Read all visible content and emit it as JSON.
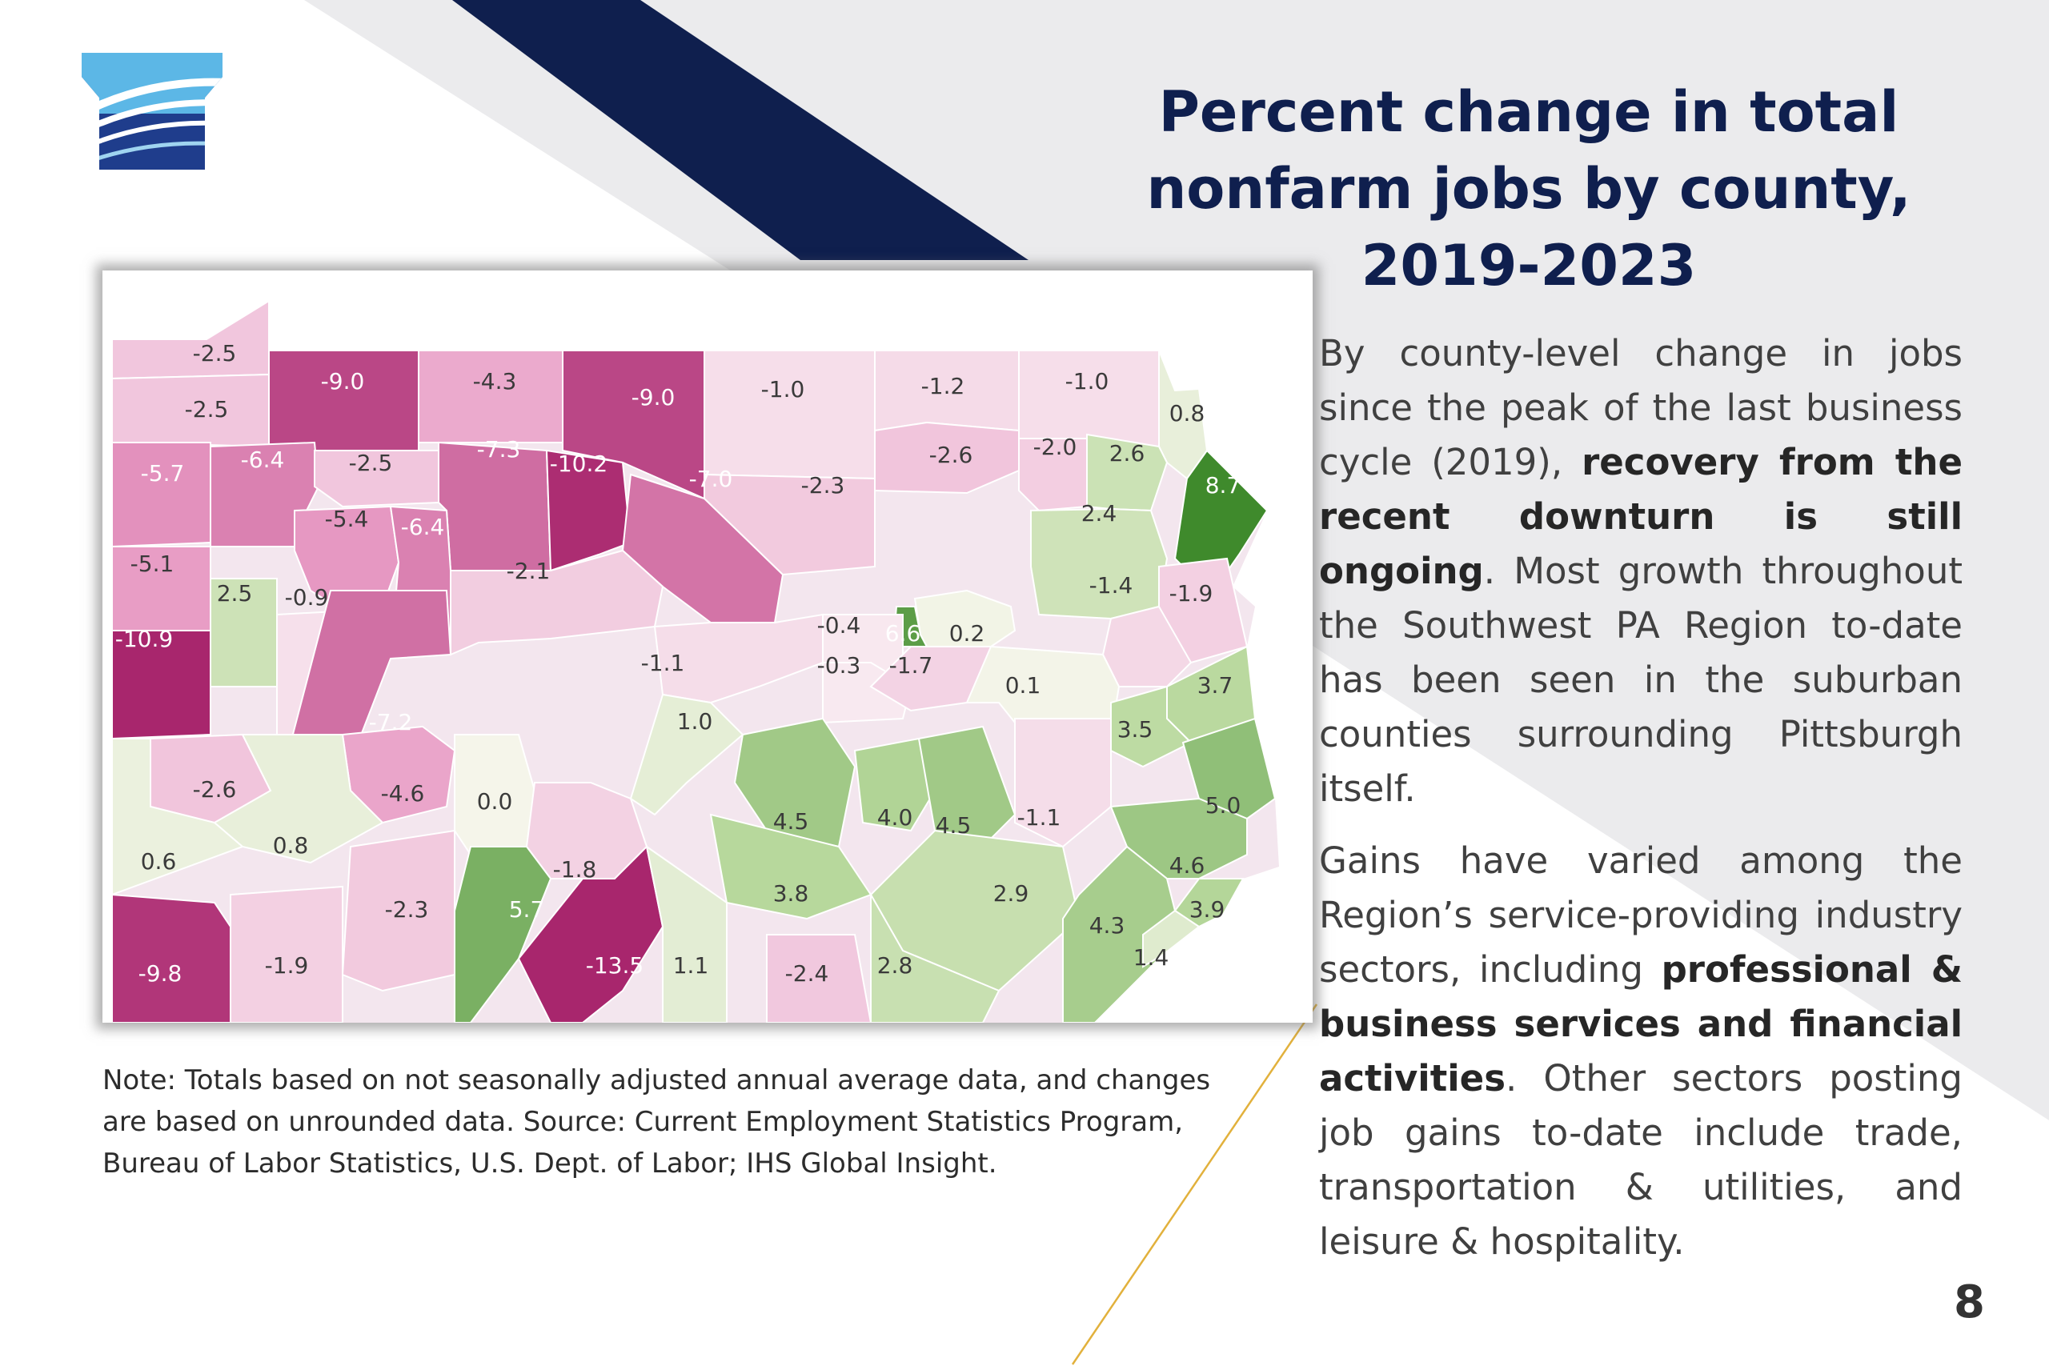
{
  "slide": {
    "title_lines": [
      "Percent change in total",
      "nonfarm jobs by county,",
      "2019-2023"
    ],
    "page_number": "8",
    "colors": {
      "title": "#0f1f4e",
      "navy_stripe": "#0f1f4e",
      "accent_line": "#e2b13c",
      "background_band": "#ebebed"
    },
    "logo": {
      "icon": "pa-keystone-logo-icon"
    }
  },
  "map": {
    "title": "",
    "subject": "Pennsylvania counties",
    "color_scale": "diverging pink (loss) to green (gain)",
    "counties": [
      {
        "value": "-2.5"
      },
      {
        "value": "-2.5"
      },
      {
        "value": "-9.0"
      },
      {
        "value": "-4.3"
      },
      {
        "value": "-9.0"
      },
      {
        "value": "-1.0"
      },
      {
        "value": "-1.2"
      },
      {
        "value": "-1.0"
      },
      {
        "value": "0.8"
      },
      {
        "value": "-5.7"
      },
      {
        "value": "-6.4"
      },
      {
        "value": "-2.5"
      },
      {
        "value": "-7.3"
      },
      {
        "value": "-10.2"
      },
      {
        "value": "-7.0"
      },
      {
        "value": "-2.3"
      },
      {
        "value": "-2.6"
      },
      {
        "value": "-2.0"
      },
      {
        "value": "2.6"
      },
      {
        "value": "8.7"
      },
      {
        "value": "-5.4"
      },
      {
        "value": "-6.4"
      },
      {
        "value": "2.4"
      },
      {
        "value": "-5.1"
      },
      {
        "value": "2.5"
      },
      {
        "value": "-2.1"
      },
      {
        "value": "-1.1"
      },
      {
        "value": "6.6"
      },
      {
        "value": "0.2"
      },
      {
        "value": "-0.4"
      },
      {
        "value": "-1.9"
      },
      {
        "value": "-0.9"
      },
      {
        "value": "-1.4"
      },
      {
        "value": "-10.9"
      },
      {
        "value": "-0.3"
      },
      {
        "value": "-1.7"
      },
      {
        "value": "0.1"
      },
      {
        "value": "3.7"
      },
      {
        "value": "-7.2"
      },
      {
        "value": "1.0"
      },
      {
        "value": "3.5"
      },
      {
        "value": "-2.6"
      },
      {
        "value": "-4.6"
      },
      {
        "value": "0.0"
      },
      {
        "value": "4.5"
      },
      {
        "value": "4.0"
      },
      {
        "value": "4.5"
      },
      {
        "value": "-1.1"
      },
      {
        "value": "5.0"
      },
      {
        "value": "0.8"
      },
      {
        "value": "-1.8"
      },
      {
        "value": "0.6"
      },
      {
        "value": "4.6"
      },
      {
        "value": "3.8"
      },
      {
        "value": "5.7"
      },
      {
        "value": "-2.3"
      },
      {
        "value": "2.9"
      },
      {
        "value": "3.9"
      },
      {
        "value": "4.3"
      },
      {
        "value": "-9.8"
      },
      {
        "value": "-1.9"
      },
      {
        "value": "-13.5"
      },
      {
        "value": "1.1"
      },
      {
        "value": "-2.4"
      },
      {
        "value": "2.8"
      },
      {
        "value": "1.4"
      }
    ]
  },
  "note": {
    "lines": [
      "Note: Totals based on not seasonally adjusted annual average data, and changes",
      "are based on unrounded data. Source: Current Employment Statistics  Program,",
      "Bureau of Labor Statistics, U.S. Dept. of Labor; IHS Global Insight."
    ]
  },
  "body": {
    "p1_a": "By county-level change in jobs since the peak of the last business cycle (2019), ",
    "p1_b": "recovery from the recent downturn is still ongoing",
    "p1_c": ". Most growth throughout the Southwest PA Region to-date has been seen in the suburban counties surrounding Pittsburgh itself.",
    "p2_a": "Gains have varied among the Region’s service-providing industry sectors, including ",
    "p2_b": "professional & business services and financial activities",
    "p2_c": ". Other sectors posting job gains to-date include trade, transportation & utilities, and leisure & hospitality."
  }
}
